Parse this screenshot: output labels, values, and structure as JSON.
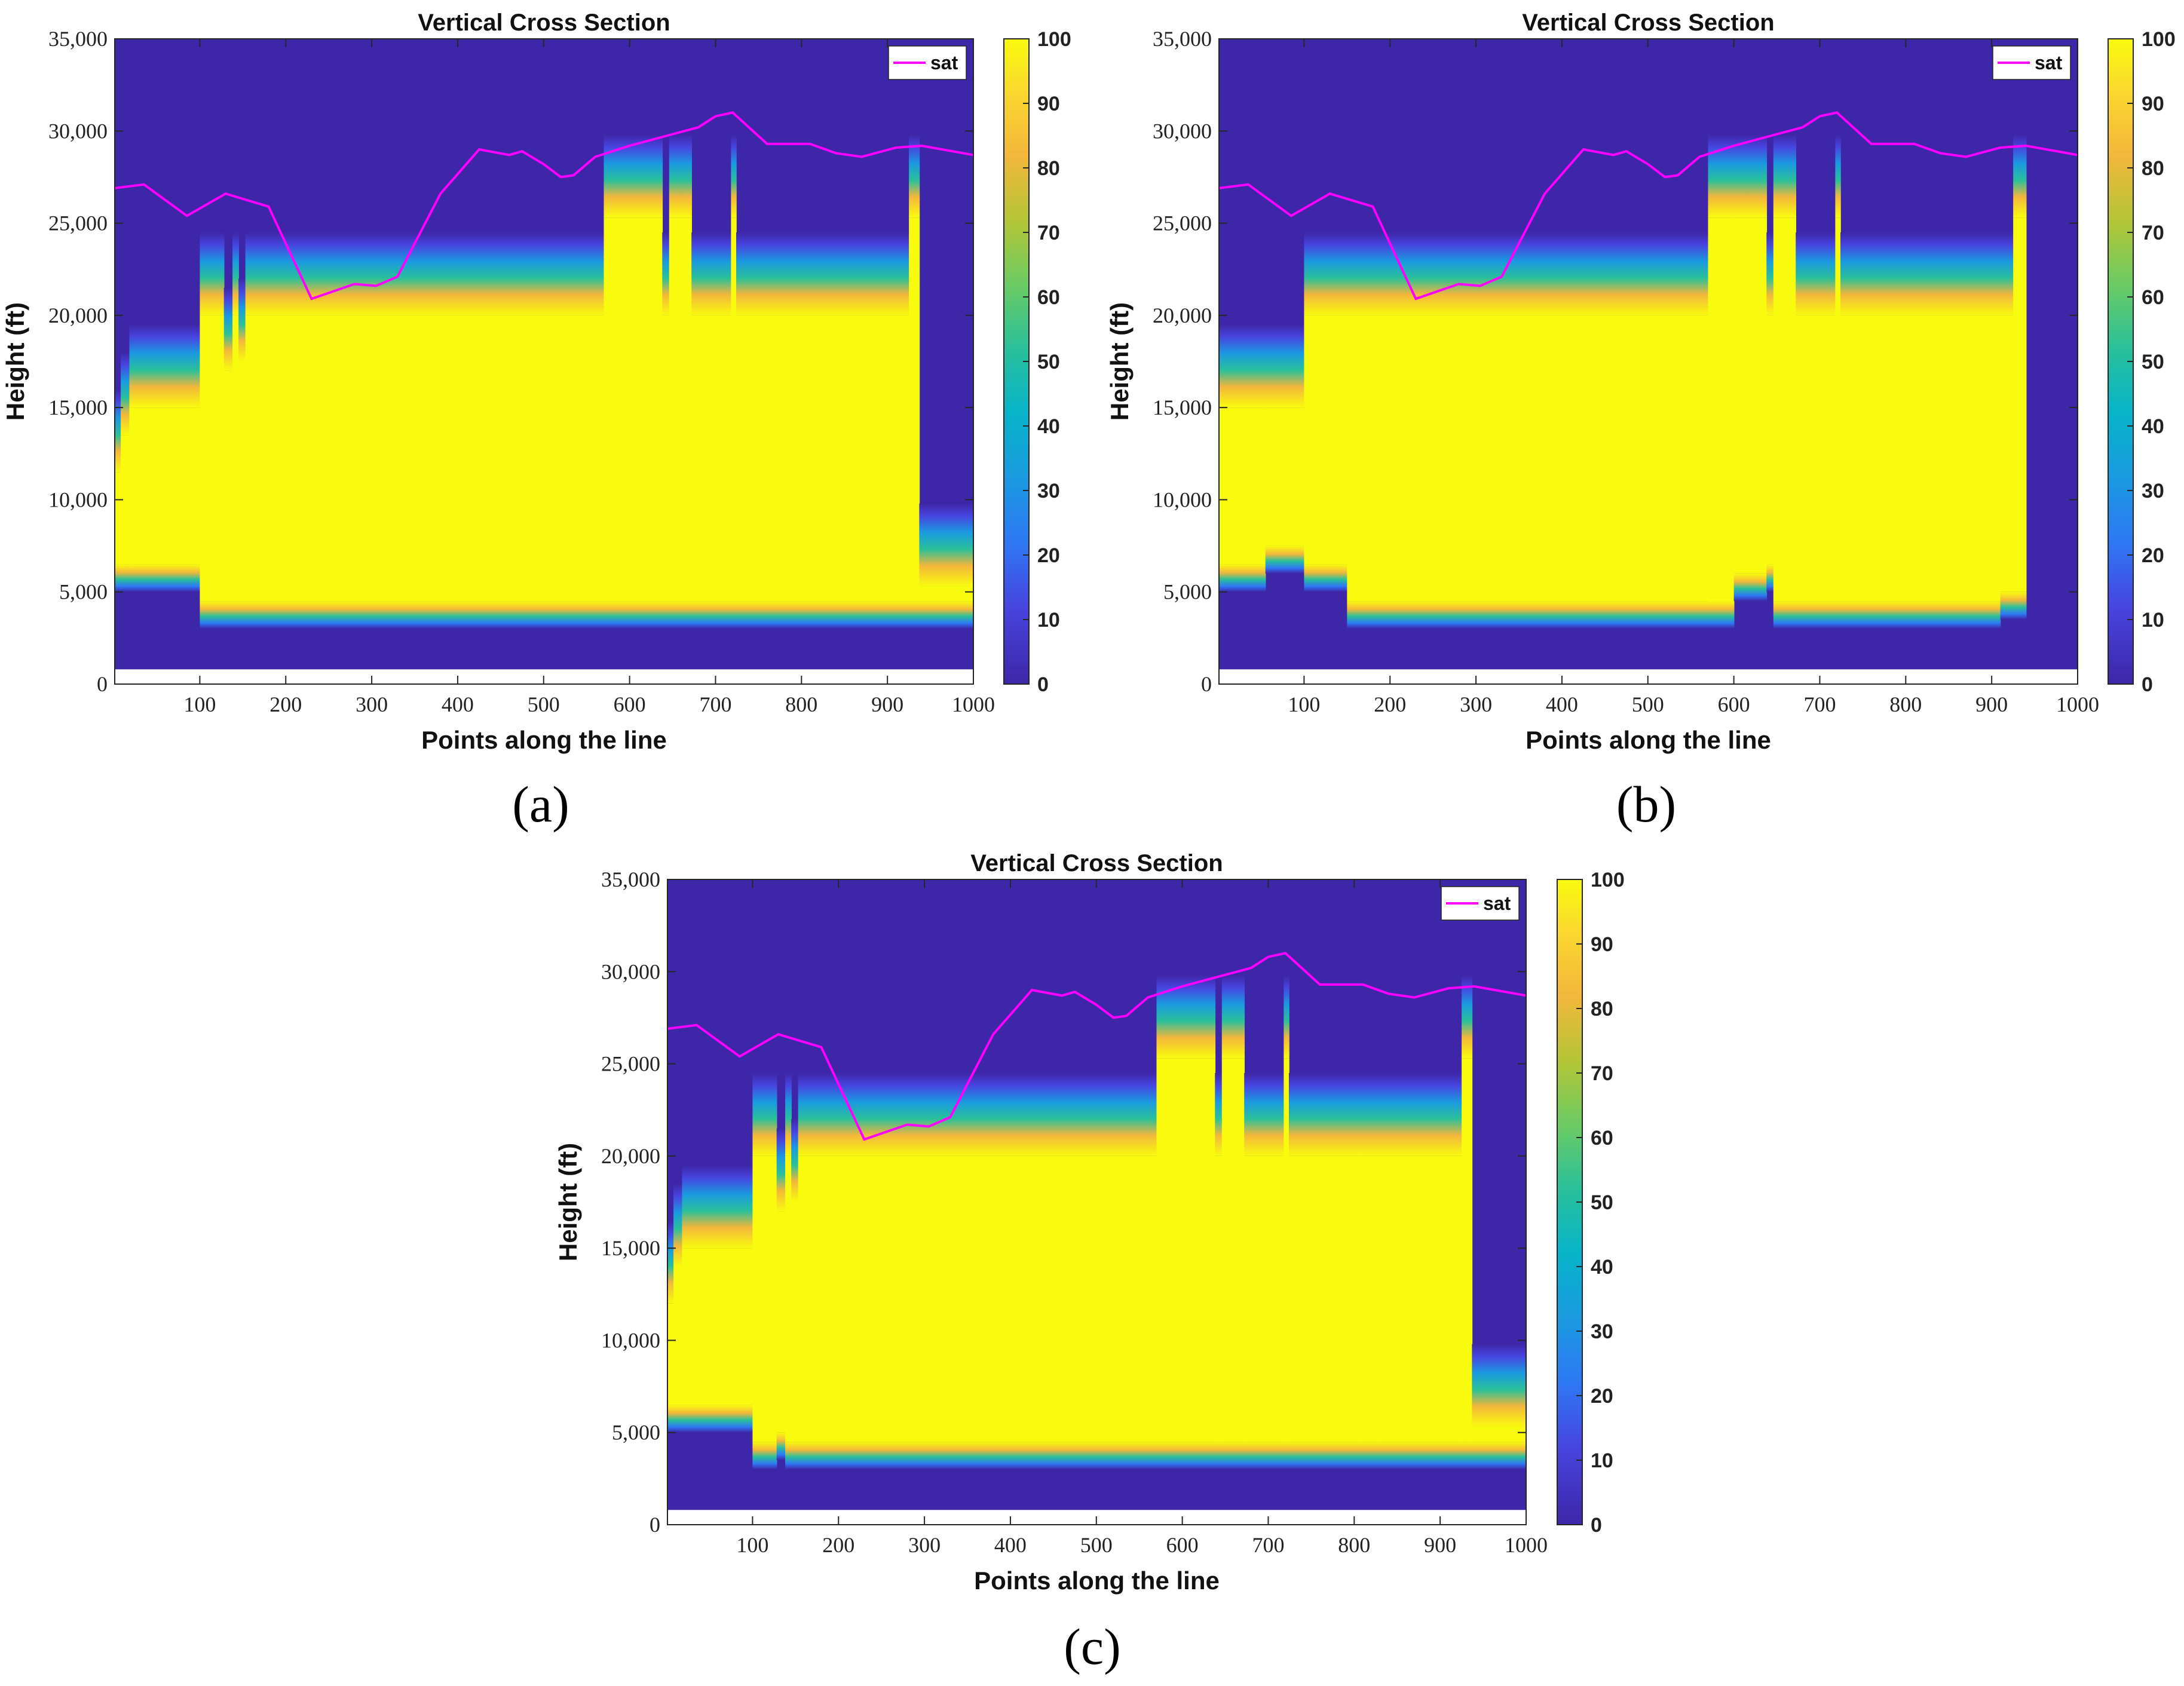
{
  "figure": {
    "panels": [
      "(a)",
      "(b)",
      "(c)"
    ]
  },
  "chart_data": [
    {
      "panel": "(a)",
      "type": "heatmap",
      "title": "Vertical Cross Section",
      "xlabel": "Points along the line",
      "ylabel": "Height (ft)",
      "xlim": [
        1,
        1000
      ],
      "ylim": [
        0,
        35000
      ],
      "xticks": [
        "100",
        "200",
        "300",
        "400",
        "500",
        "600",
        "700",
        "800",
        "900",
        "1000"
      ],
      "yticks": [
        "0",
        "5,000",
        "10,000",
        "15,000",
        "20,000",
        "25,000",
        "30,000",
        "35,000"
      ],
      "colorbar": {
        "min": 0,
        "max": 100,
        "ticks": [
          "0",
          "10",
          "20",
          "30",
          "40",
          "50",
          "60",
          "70",
          "80",
          "90",
          "100"
        ]
      },
      "legend": {
        "label": "sat",
        "color": "#ff00ff",
        "position": "top-right"
      },
      "ground_height": 800,
      "columns": [
        {
          "x0": 1,
          "x1": 8,
          "bottom": 5000,
          "top": 16000
        },
        {
          "x0": 8,
          "x1": 18,
          "bottom": 5000,
          "top": 18000
        },
        {
          "x0": 18,
          "x1": 100,
          "bottom": 5000,
          "top": 19500
        },
        {
          "x0": 100,
          "x1": 128,
          "bottom": 3000,
          "top": 24500
        },
        {
          "x0": 128,
          "x1": 138,
          "bottom": 3000,
          "top": 21500
        },
        {
          "x0": 138,
          "x1": 145,
          "bottom": 3000,
          "top": 24500
        },
        {
          "x0": 145,
          "x1": 153,
          "bottom": 3000,
          "top": 22000
        },
        {
          "x0": 153,
          "x1": 570,
          "bottom": 3000,
          "top": 24500
        },
        {
          "x0": 570,
          "x1": 638,
          "bottom": 3000,
          "top": 29800
        },
        {
          "x0": 638,
          "x1": 646,
          "bottom": 3000,
          "top": 24500
        },
        {
          "x0": 646,
          "x1": 672,
          "bottom": 3000,
          "top": 29800
        },
        {
          "x0": 672,
          "x1": 718,
          "bottom": 3000,
          "top": 24500
        },
        {
          "x0": 718,
          "x1": 724,
          "bottom": 3000,
          "top": 29800
        },
        {
          "x0": 724,
          "x1": 805,
          "bottom": 3000,
          "top": 24500
        },
        {
          "x0": 805,
          "x1": 830,
          "bottom": 3000,
          "top": 24500
        },
        {
          "x0": 830,
          "x1": 925,
          "bottom": 3000,
          "top": 24500
        },
        {
          "x0": 925,
          "x1": 937,
          "bottom": 3000,
          "top": 29800
        },
        {
          "x0": 937,
          "x1": 1000,
          "bottom": 3000,
          "top": 9800
        }
      ],
      "sat_line": {
        "x": [
          1,
          35,
          85,
          130,
          180,
          230,
          280,
          305,
          330,
          380,
          425,
          460,
          475,
          500,
          520,
          535,
          560,
          600,
          640,
          680,
          700,
          720,
          760,
          810,
          840,
          870,
          910,
          940,
          1000
        ],
        "y": [
          26900,
          27100,
          25400,
          26600,
          25900,
          20900,
          21700,
          21600,
          22100,
          26600,
          29000,
          28700,
          28900,
          28200,
          27500,
          27600,
          28600,
          29200,
          29700,
          30200,
          30800,
          31000,
          29300,
          29300,
          28800,
          28600,
          29100,
          29200,
          28700
        ]
      }
    },
    {
      "panel": "(b)",
      "type": "heatmap",
      "title": "Vertical Cross Section",
      "xlabel": "Points along the line",
      "ylabel": "Height (ft)",
      "xlim": [
        1,
        1000
      ],
      "ylim": [
        0,
        35000
      ],
      "xticks": [
        "100",
        "200",
        "300",
        "400",
        "500",
        "600",
        "700",
        "800",
        "900",
        "1000"
      ],
      "yticks": [
        "0",
        "5,000",
        "10,000",
        "15,000",
        "20,000",
        "25,000",
        "30,000",
        "35,000"
      ],
      "colorbar": {
        "min": 0,
        "max": 100,
        "ticks": [
          "0",
          "10",
          "20",
          "30",
          "40",
          "50",
          "60",
          "70",
          "80",
          "90",
          "100"
        ]
      },
      "legend": {
        "label": "sat",
        "color": "#ff00ff",
        "position": "top-right"
      },
      "ground_height": 800,
      "columns": [
        {
          "x0": 1,
          "x1": 55,
          "bottom": 5000,
          "top": 19500
        },
        {
          "x0": 55,
          "x1": 100,
          "bottom": 6000,
          "top": 19500
        },
        {
          "x0": 100,
          "x1": 150,
          "bottom": 5000,
          "top": 24500
        },
        {
          "x0": 150,
          "x1": 600,
          "bottom": 3000,
          "top": 24500
        },
        {
          "x0": 570,
          "x1": 600,
          "bottom": 3000,
          "top": 29800
        },
        {
          "x0": 600,
          "x1": 638,
          "bottom": 4500,
          "top": 29800
        },
        {
          "x0": 638,
          "x1": 646,
          "bottom": 5000,
          "top": 24500
        },
        {
          "x0": 646,
          "x1": 672,
          "bottom": 3000,
          "top": 29800
        },
        {
          "x0": 672,
          "x1": 718,
          "bottom": 3000,
          "top": 24500
        },
        {
          "x0": 718,
          "x1": 724,
          "bottom": 3000,
          "top": 29800
        },
        {
          "x0": 724,
          "x1": 805,
          "bottom": 3000,
          "top": 24500
        },
        {
          "x0": 805,
          "x1": 830,
          "bottom": 3000,
          "top": 24500
        },
        {
          "x0": 830,
          "x1": 910,
          "bottom": 3000,
          "top": 24500
        },
        {
          "x0": 910,
          "x1": 925,
          "bottom": 3500,
          "top": 24500
        },
        {
          "x0": 925,
          "x1": 940,
          "bottom": 3500,
          "top": 29800
        }
      ],
      "sat_line": {
        "x": [
          1,
          35,
          85,
          130,
          180,
          230,
          280,
          305,
          330,
          380,
          425,
          460,
          475,
          500,
          520,
          535,
          560,
          600,
          640,
          680,
          700,
          720,
          760,
          810,
          840,
          870,
          910,
          940,
          1000
        ],
        "y": [
          26900,
          27100,
          25400,
          26600,
          25900,
          20900,
          21700,
          21600,
          22100,
          26600,
          29000,
          28700,
          28900,
          28200,
          27500,
          27600,
          28600,
          29200,
          29700,
          30200,
          30800,
          31000,
          29300,
          29300,
          28800,
          28600,
          29100,
          29200,
          28700
        ]
      }
    },
    {
      "panel": "(c)",
      "type": "heatmap",
      "title": "Vertical Cross Section",
      "xlabel": "Points along the line",
      "ylabel": "Height (ft)",
      "xlim": [
        1,
        1000
      ],
      "ylim": [
        0,
        35000
      ],
      "xticks": [
        "100",
        "200",
        "300",
        "400",
        "500",
        "600",
        "700",
        "800",
        "900",
        "1000"
      ],
      "yticks": [
        "0",
        "5,000",
        "10,000",
        "15,000",
        "20,000",
        "25,000",
        "30,000",
        "35,000"
      ],
      "colorbar": {
        "min": 0,
        "max": 100,
        "ticks": [
          "0",
          "10",
          "20",
          "30",
          "40",
          "50",
          "60",
          "70",
          "80",
          "90",
          "100"
        ]
      },
      "legend": {
        "label": "sat",
        "color": "#ff00ff",
        "position": "top-right"
      },
      "ground_height": 800,
      "columns": [
        {
          "x0": 1,
          "x1": 8,
          "bottom": 5000,
          "top": 16500
        },
        {
          "x0": 8,
          "x1": 18,
          "bottom": 5000,
          "top": 18500
        },
        {
          "x0": 18,
          "x1": 100,
          "bottom": 5000,
          "top": 19500
        },
        {
          "x0": 100,
          "x1": 128,
          "bottom": 3000,
          "top": 24500
        },
        {
          "x0": 128,
          "x1": 138,
          "bottom": 3500,
          "top": 21500
        },
        {
          "x0": 138,
          "x1": 145,
          "bottom": 3000,
          "top": 24500
        },
        {
          "x0": 145,
          "x1": 153,
          "bottom": 3000,
          "top": 22000
        },
        {
          "x0": 153,
          "x1": 570,
          "bottom": 3000,
          "top": 24500
        },
        {
          "x0": 570,
          "x1": 638,
          "bottom": 3000,
          "top": 29800
        },
        {
          "x0": 638,
          "x1": 646,
          "bottom": 3000,
          "top": 24500
        },
        {
          "x0": 646,
          "x1": 672,
          "bottom": 3000,
          "top": 29800
        },
        {
          "x0": 672,
          "x1": 718,
          "bottom": 3000,
          "top": 24500
        },
        {
          "x0": 718,
          "x1": 724,
          "bottom": 3000,
          "top": 29800
        },
        {
          "x0": 724,
          "x1": 805,
          "bottom": 3000,
          "top": 24500
        },
        {
          "x0": 805,
          "x1": 830,
          "bottom": 3000,
          "top": 24500
        },
        {
          "x0": 830,
          "x1": 925,
          "bottom": 3000,
          "top": 24500
        },
        {
          "x0": 925,
          "x1": 937,
          "bottom": 3000,
          "top": 29800
        },
        {
          "x0": 937,
          "x1": 1000,
          "bottom": 3000,
          "top": 9800
        }
      ],
      "sat_line": {
        "x": [
          1,
          35,
          85,
          130,
          180,
          230,
          280,
          305,
          330,
          380,
          425,
          460,
          475,
          500,
          520,
          535,
          560,
          600,
          640,
          680,
          700,
          720,
          760,
          810,
          840,
          870,
          910,
          940,
          1000
        ],
        "y": [
          26900,
          27100,
          25400,
          26600,
          25900,
          20900,
          21700,
          21600,
          22100,
          26600,
          29000,
          28700,
          28900,
          28200,
          27500,
          27600,
          28600,
          29200,
          29700,
          30200,
          30800,
          31000,
          29300,
          29300,
          28800,
          28600,
          29100,
          29200,
          28700
        ]
      }
    }
  ]
}
